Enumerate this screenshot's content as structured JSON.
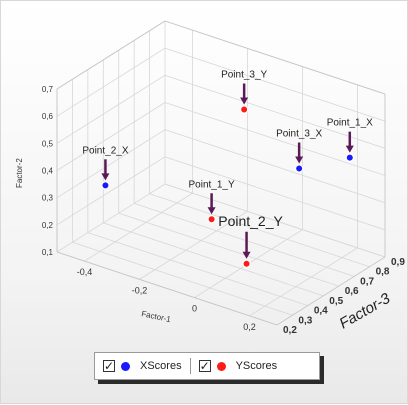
{
  "chart_data": {
    "type": "scatter3d",
    "axes": {
      "x": {
        "label": "Factor-1",
        "range": [
          -0.5,
          0.3
        ],
        "ticks": [
          -0.4,
          -0.2,
          0,
          0.2
        ],
        "tick_labels": [
          "-0,4",
          "-0,2",
          "0",
          "0,2"
        ]
      },
      "y": {
        "label": "Factor-2",
        "range": [
          0.1,
          0.7
        ],
        "ticks": [
          0.1,
          0.2,
          0.3,
          0.4,
          0.5,
          0.6,
          0.7
        ],
        "tick_labels": [
          "0,1",
          "0,2",
          "0,3",
          "0,4",
          "0,5",
          "0,6",
          "0,7"
        ]
      },
      "z": {
        "label": "Factor-3",
        "range": [
          0.2,
          0.9
        ],
        "ticks": [
          0.2,
          0.3,
          0.4,
          0.5,
          0.6,
          0.7,
          0.8,
          0.9
        ],
        "tick_labels": [
          "0,2",
          "0,3",
          "0,4",
          "0,5",
          "0,6",
          "0,7",
          "0,8",
          "0,9"
        ]
      }
    },
    "grid": true,
    "legend_position": "bottom",
    "series": [
      {
        "name": "XScores",
        "color": "#1a1aff",
        "points": [
          {
            "label": "Point_1_X",
            "x": 0.2,
            "y": 0.45,
            "z": 0.85
          },
          {
            "label": "Point_2_X",
            "x": -0.38,
            "y": 0.35,
            "z": 0.3
          },
          {
            "label": "Point_3_X",
            "x": 0.1,
            "y": 0.43,
            "z": 0.7
          }
        ]
      },
      {
        "name": "YScores",
        "color": "#ff1a1a",
        "points": [
          {
            "label": "Point_1_Y",
            "x": -0.05,
            "y": 0.3,
            "z": 0.4
          },
          {
            "label": "Point_2_Y",
            "x": 0.15,
            "y": 0.25,
            "z": 0.27
          },
          {
            "label": "Point_3_Y",
            "x": -0.1,
            "y": 0.58,
            "z": 0.7
          }
        ]
      }
    ]
  },
  "legend": {
    "items": [
      {
        "name": "XScores",
        "color": "#1a1aff",
        "checked": true
      },
      {
        "name": "YScores",
        "color": "#ff1a1a",
        "checked": true
      }
    ]
  },
  "colors": {
    "arrow": "#5a1a55",
    "grid": "#d7d7d7",
    "axis_text": "#333333"
  }
}
